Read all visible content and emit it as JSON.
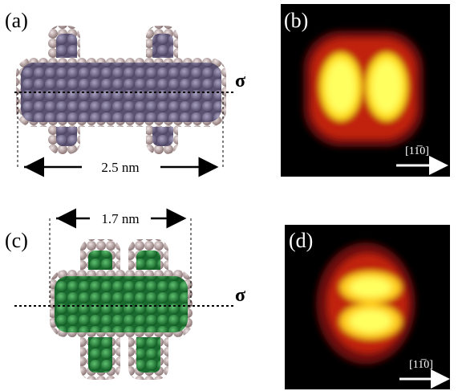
{
  "panels": [
    {
      "label": "(a)",
      "axis_label": "σ",
      "dimension": "2.5 nm"
    },
    {
      "label": "(b)",
      "direction": "[11̅0]"
    },
    {
      "label": "(c)",
      "axis_label": "σ",
      "dimension": "1.7 nm"
    },
    {
      "label": "(d)",
      "direction": "[11̅0]"
    }
  ]
}
